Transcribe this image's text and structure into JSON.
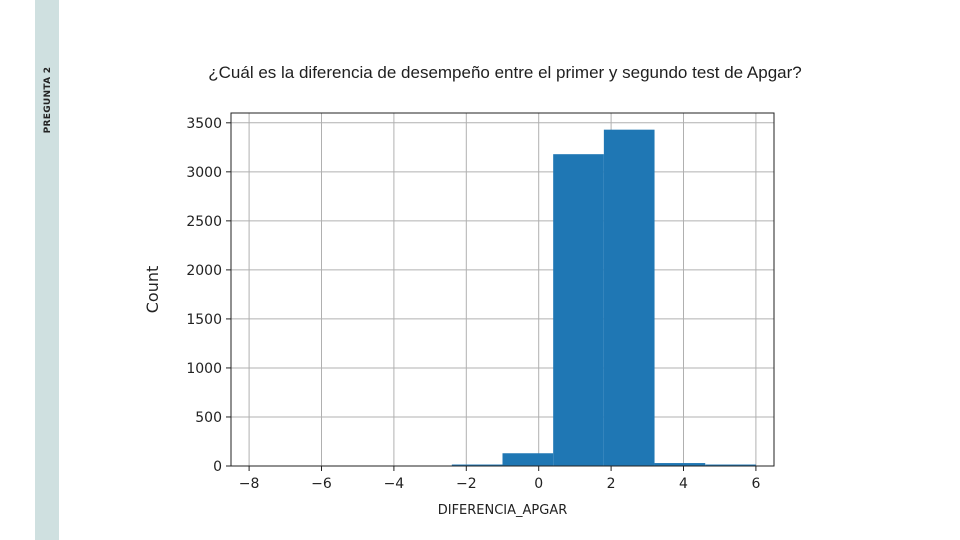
{
  "slide": {
    "section_label": "PREGUNTA 2",
    "title": "¿Cuál es la diferencia de desempeño entre el primer y segundo test de Apgar?"
  },
  "colors": {
    "side_band": "#cfe0e0",
    "bar_fill": "#1f77b4",
    "grid": "#b0b0b0"
  },
  "chart_data": {
    "type": "bar",
    "subtype": "histogram",
    "title": "",
    "xlabel": "DIFERENCIA_APGAR",
    "ylabel": "Count",
    "xlim": [
      -8.5,
      6.5
    ],
    "ylim": [
      0,
      3600
    ],
    "grid": true,
    "x_ticks": [
      -8,
      -6,
      -4,
      -2,
      0,
      2,
      4,
      6
    ],
    "x_tick_labels": [
      "−8",
      "−6",
      "−4",
      "−2",
      "0",
      "2",
      "4",
      "6"
    ],
    "y_ticks": [
      0,
      500,
      1000,
      1500,
      2000,
      2500,
      3000,
      3500
    ],
    "y_tick_labels": [
      "0",
      "500",
      "1000",
      "1500",
      "2000",
      "2500",
      "3000",
      "3500"
    ],
    "bins": [
      {
        "x0": -8.0,
        "x1": -6.6,
        "value": 1
      },
      {
        "x0": -6.6,
        "x1": -5.2,
        "value": 1
      },
      {
        "x0": -5.2,
        "x1": -3.8,
        "value": 2
      },
      {
        "x0": -3.8,
        "x1": -2.4,
        "value": 4
      },
      {
        "x0": -2.4,
        "x1": -1.0,
        "value": 15
      },
      {
        "x0": -1.0,
        "x1": 0.4,
        "value": 130
      },
      {
        "x0": 0.4,
        "x1": 1.8,
        "value": 3180
      },
      {
        "x0": 1.8,
        "x1": 3.2,
        "value": 3430
      },
      {
        "x0": 3.2,
        "x1": 4.6,
        "value": 30
      },
      {
        "x0": 4.6,
        "x1": 6.0,
        "value": 15
      }
    ]
  }
}
